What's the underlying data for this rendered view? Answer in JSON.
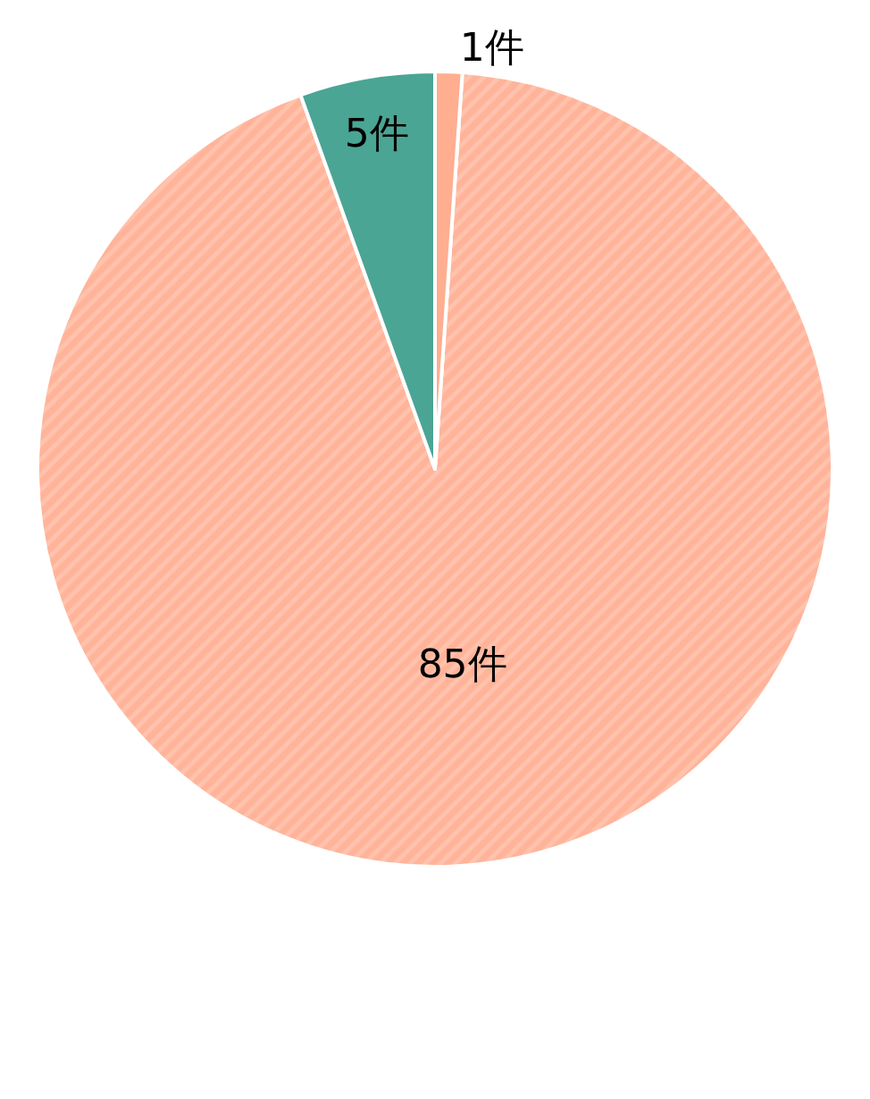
{
  "chart_data": {
    "type": "pie",
    "categories": [
      null,
      null,
      null
    ],
    "values": [
      85,
      5,
      1
    ],
    "colors": [
      "#ffb49a",
      "#4aa594",
      "#ffae90"
    ],
    "value_labels": [
      "85件",
      "5件",
      "1件"
    ]
  }
}
